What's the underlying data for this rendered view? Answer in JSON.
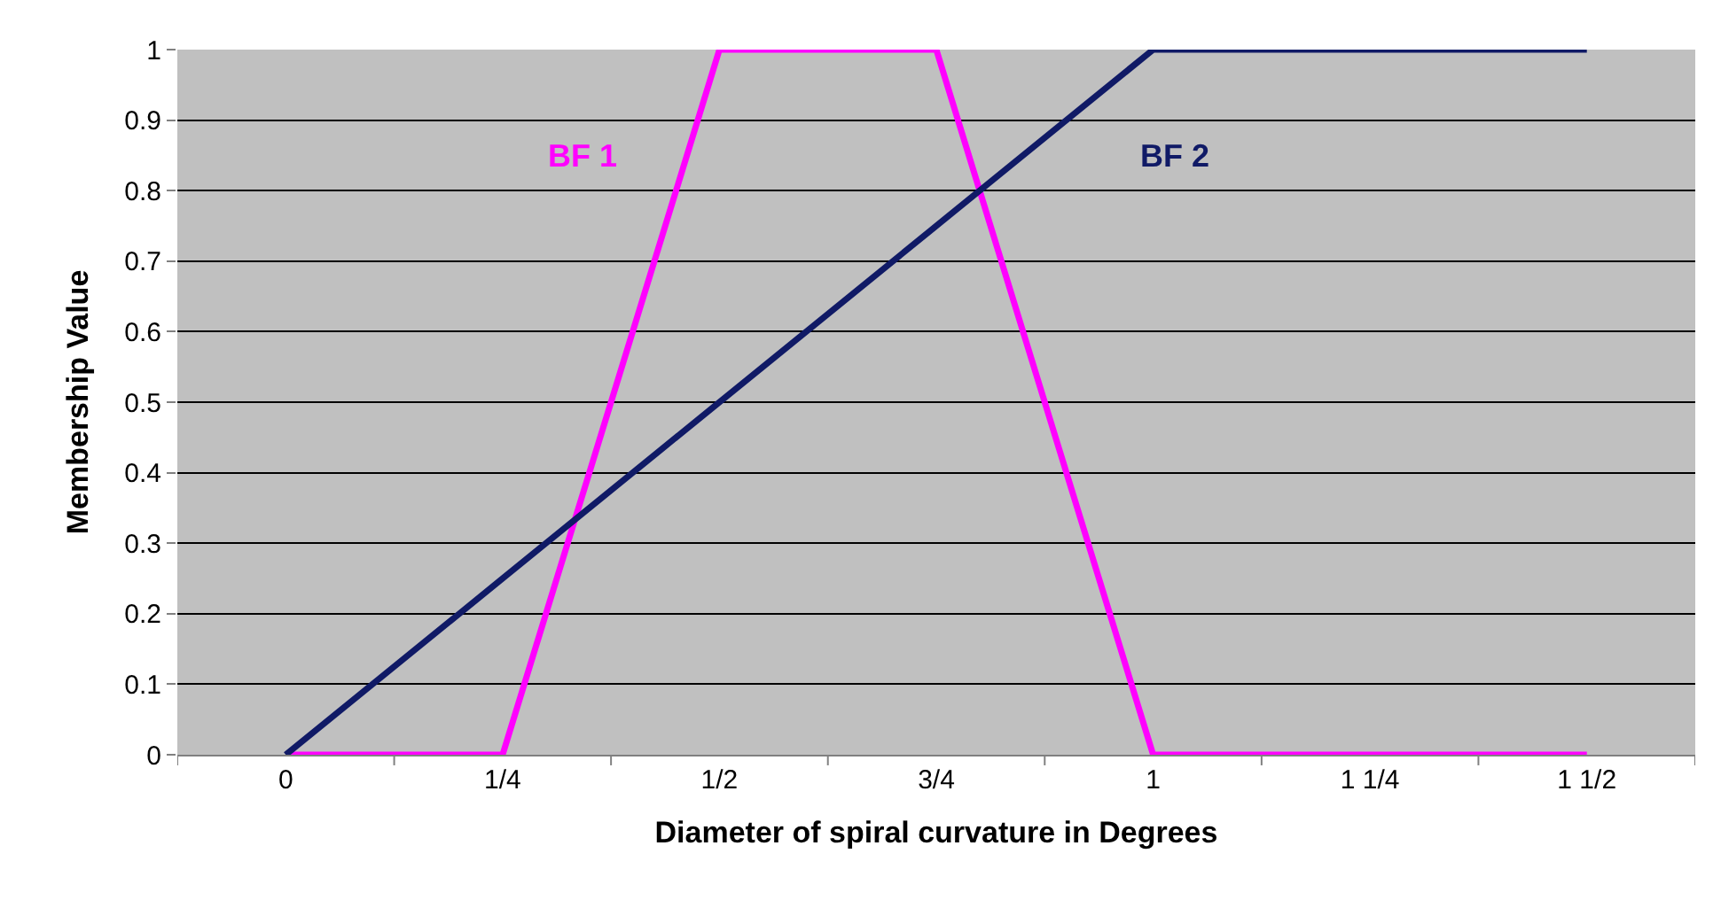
{
  "chart_data": {
    "type": "line",
    "xlabel": "Diameter of spiral curvature in Degrees",
    "ylabel": "Membership Value",
    "categories": [
      "0",
      "1/4",
      "1/2",
      "3/4",
      "1",
      "1 1/4",
      "1 1/2"
    ],
    "series": [
      {
        "name": "BF 1",
        "color": "#ff00ff",
        "values": [
          0,
          0,
          1,
          1,
          0,
          0,
          0
        ]
      },
      {
        "name": "BF 2",
        "color": "#101a66",
        "values": [
          0,
          0.25,
          0.5,
          0.75,
          1,
          1,
          1
        ]
      }
    ],
    "ylim": [
      0,
      1
    ],
    "yticks": [
      0,
      0.1,
      0.2,
      0.3,
      0.4,
      0.5,
      0.6,
      0.7,
      0.8,
      0.9,
      1
    ],
    "grid": "y",
    "legend": false,
    "marker": "none",
    "line_style": "solid"
  }
}
